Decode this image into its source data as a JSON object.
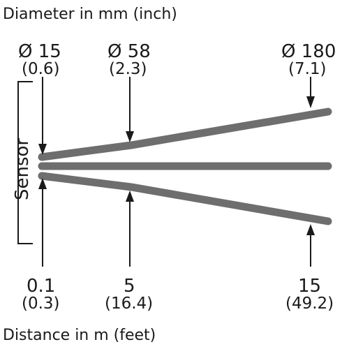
{
  "title_top": "Diameter in mm (inch)",
  "title_bottom": "Distance in m (feet)",
  "sensor_label": "Sensor",
  "diameters": [
    {
      "value": "Ø 15",
      "imperial": "(0.6)"
    },
    {
      "value": "Ø 58",
      "imperial": "(2.3)"
    },
    {
      "value": "Ø 180",
      "imperial": "(7.1)"
    }
  ],
  "distances": [
    {
      "value": "0.1",
      "imperial": "(0.3)"
    },
    {
      "value": "5",
      "imperial": "(16.4)"
    },
    {
      "value": "15",
      "imperial": "(49.2)"
    }
  ],
  "colors": {
    "beam": "#6e6e6e",
    "ink": "#1a1a1a",
    "background": "#ffffff"
  }
}
